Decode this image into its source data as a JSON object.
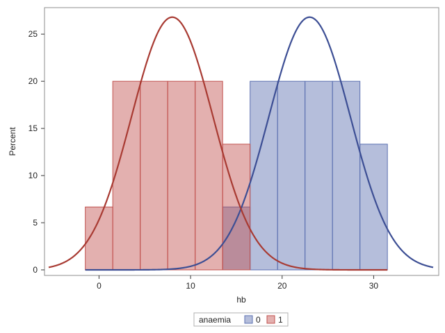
{
  "chart_data": {
    "type": "histogram",
    "xlabel": "hb",
    "ylabel": "Percent",
    "xlim": [
      -5.5,
      36.5
    ],
    "ylim": [
      0,
      27
    ],
    "x_ticks": [
      0,
      10,
      20,
      30
    ],
    "y_ticks": [
      0,
      5,
      10,
      15,
      20,
      25
    ],
    "grid": false,
    "legend": {
      "title": "anaemia",
      "placement": "bottom-center"
    },
    "bin_width": 3,
    "series": [
      {
        "name": "0",
        "color": "#5a6fb0",
        "bins": [
          {
            "start": 13.5,
            "end": 16.5,
            "value": 6.67
          },
          {
            "start": 16.5,
            "end": 19.5,
            "value": 20
          },
          {
            "start": 19.5,
            "end": 22.5,
            "value": 20
          },
          {
            "start": 22.5,
            "end": 25.5,
            "value": 20
          },
          {
            "start": 25.5,
            "end": 28.5,
            "value": 20
          },
          {
            "start": 28.5,
            "end": 31.5,
            "value": 13.33
          }
        ],
        "curve": {
          "type": "normal",
          "mean": 23,
          "peak": 26.8,
          "sd": 4.45,
          "range": [
            -1.5,
            36.5
          ]
        },
        "curve_color": "#3c4e94"
      },
      {
        "name": "1",
        "color": "#c0504d",
        "bins": [
          {
            "start": -1.5,
            "end": 1.5,
            "value": 6.67
          },
          {
            "start": 1.5,
            "end": 4.5,
            "value": 20
          },
          {
            "start": 4.5,
            "end": 7.5,
            "value": 20
          },
          {
            "start": 7.5,
            "end": 10.5,
            "value": 20
          },
          {
            "start": 10.5,
            "end": 13.5,
            "value": 20
          },
          {
            "start": 13.5,
            "end": 16.5,
            "value": 13.33
          }
        ],
        "curve": {
          "type": "normal",
          "mean": 8,
          "peak": 26.8,
          "sd": 4.45,
          "range": [
            -5.5,
            31.5
          ]
        },
        "curve_color": "#a83a32"
      }
    ]
  }
}
